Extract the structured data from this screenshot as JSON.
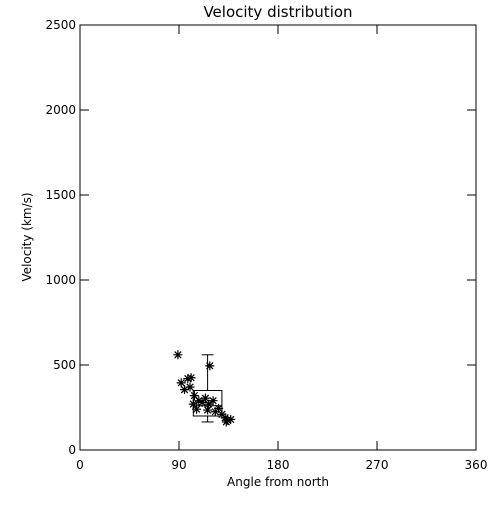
{
  "chart_data": {
    "type": "scatter",
    "title": "Velocity distribution",
    "xlabel": "Angle from north",
    "ylabel": "Velocity (km/s)",
    "xlim": [
      0,
      360
    ],
    "ylim": [
      0,
      2500
    ],
    "xticks": [
      0,
      90,
      180,
      270,
      360
    ],
    "xtick_labels": [
      "0",
      "90",
      "180",
      "270",
      "360"
    ],
    "yticks": [
      0,
      500,
      1000,
      1500,
      2000,
      2500
    ],
    "ytick_labels": [
      "0",
      "500",
      "1000",
      "1500",
      "2000",
      "2500"
    ],
    "grid": false,
    "marker": "asterisk",
    "points": [
      {
        "x": 89,
        "y": 560
      },
      {
        "x": 118,
        "y": 495
      },
      {
        "x": 92,
        "y": 395
      },
      {
        "x": 98,
        "y": 420
      },
      {
        "x": 101,
        "y": 425
      },
      {
        "x": 95,
        "y": 355
      },
      {
        "x": 100,
        "y": 370
      },
      {
        "x": 104,
        "y": 320
      },
      {
        "x": 108,
        "y": 290
      },
      {
        "x": 103,
        "y": 270
      },
      {
        "x": 106,
        "y": 240
      },
      {
        "x": 111,
        "y": 280
      },
      {
        "x": 114,
        "y": 305
      },
      {
        "x": 117,
        "y": 270
      },
      {
        "x": 121,
        "y": 290
      },
      {
        "x": 116,
        "y": 235
      },
      {
        "x": 123,
        "y": 225
      },
      {
        "x": 126,
        "y": 245
      },
      {
        "x": 129,
        "y": 210
      },
      {
        "x": 132,
        "y": 190
      },
      {
        "x": 134,
        "y": 175
      },
      {
        "x": 137,
        "y": 180
      },
      {
        "x": 133,
        "y": 165
      }
    ],
    "boxplot": {
      "x_min": 103,
      "x_max": 129,
      "whisker_x": 116,
      "low": 165,
      "q1": 200,
      "median": 260,
      "q3": 350,
      "high": 560
    }
  }
}
